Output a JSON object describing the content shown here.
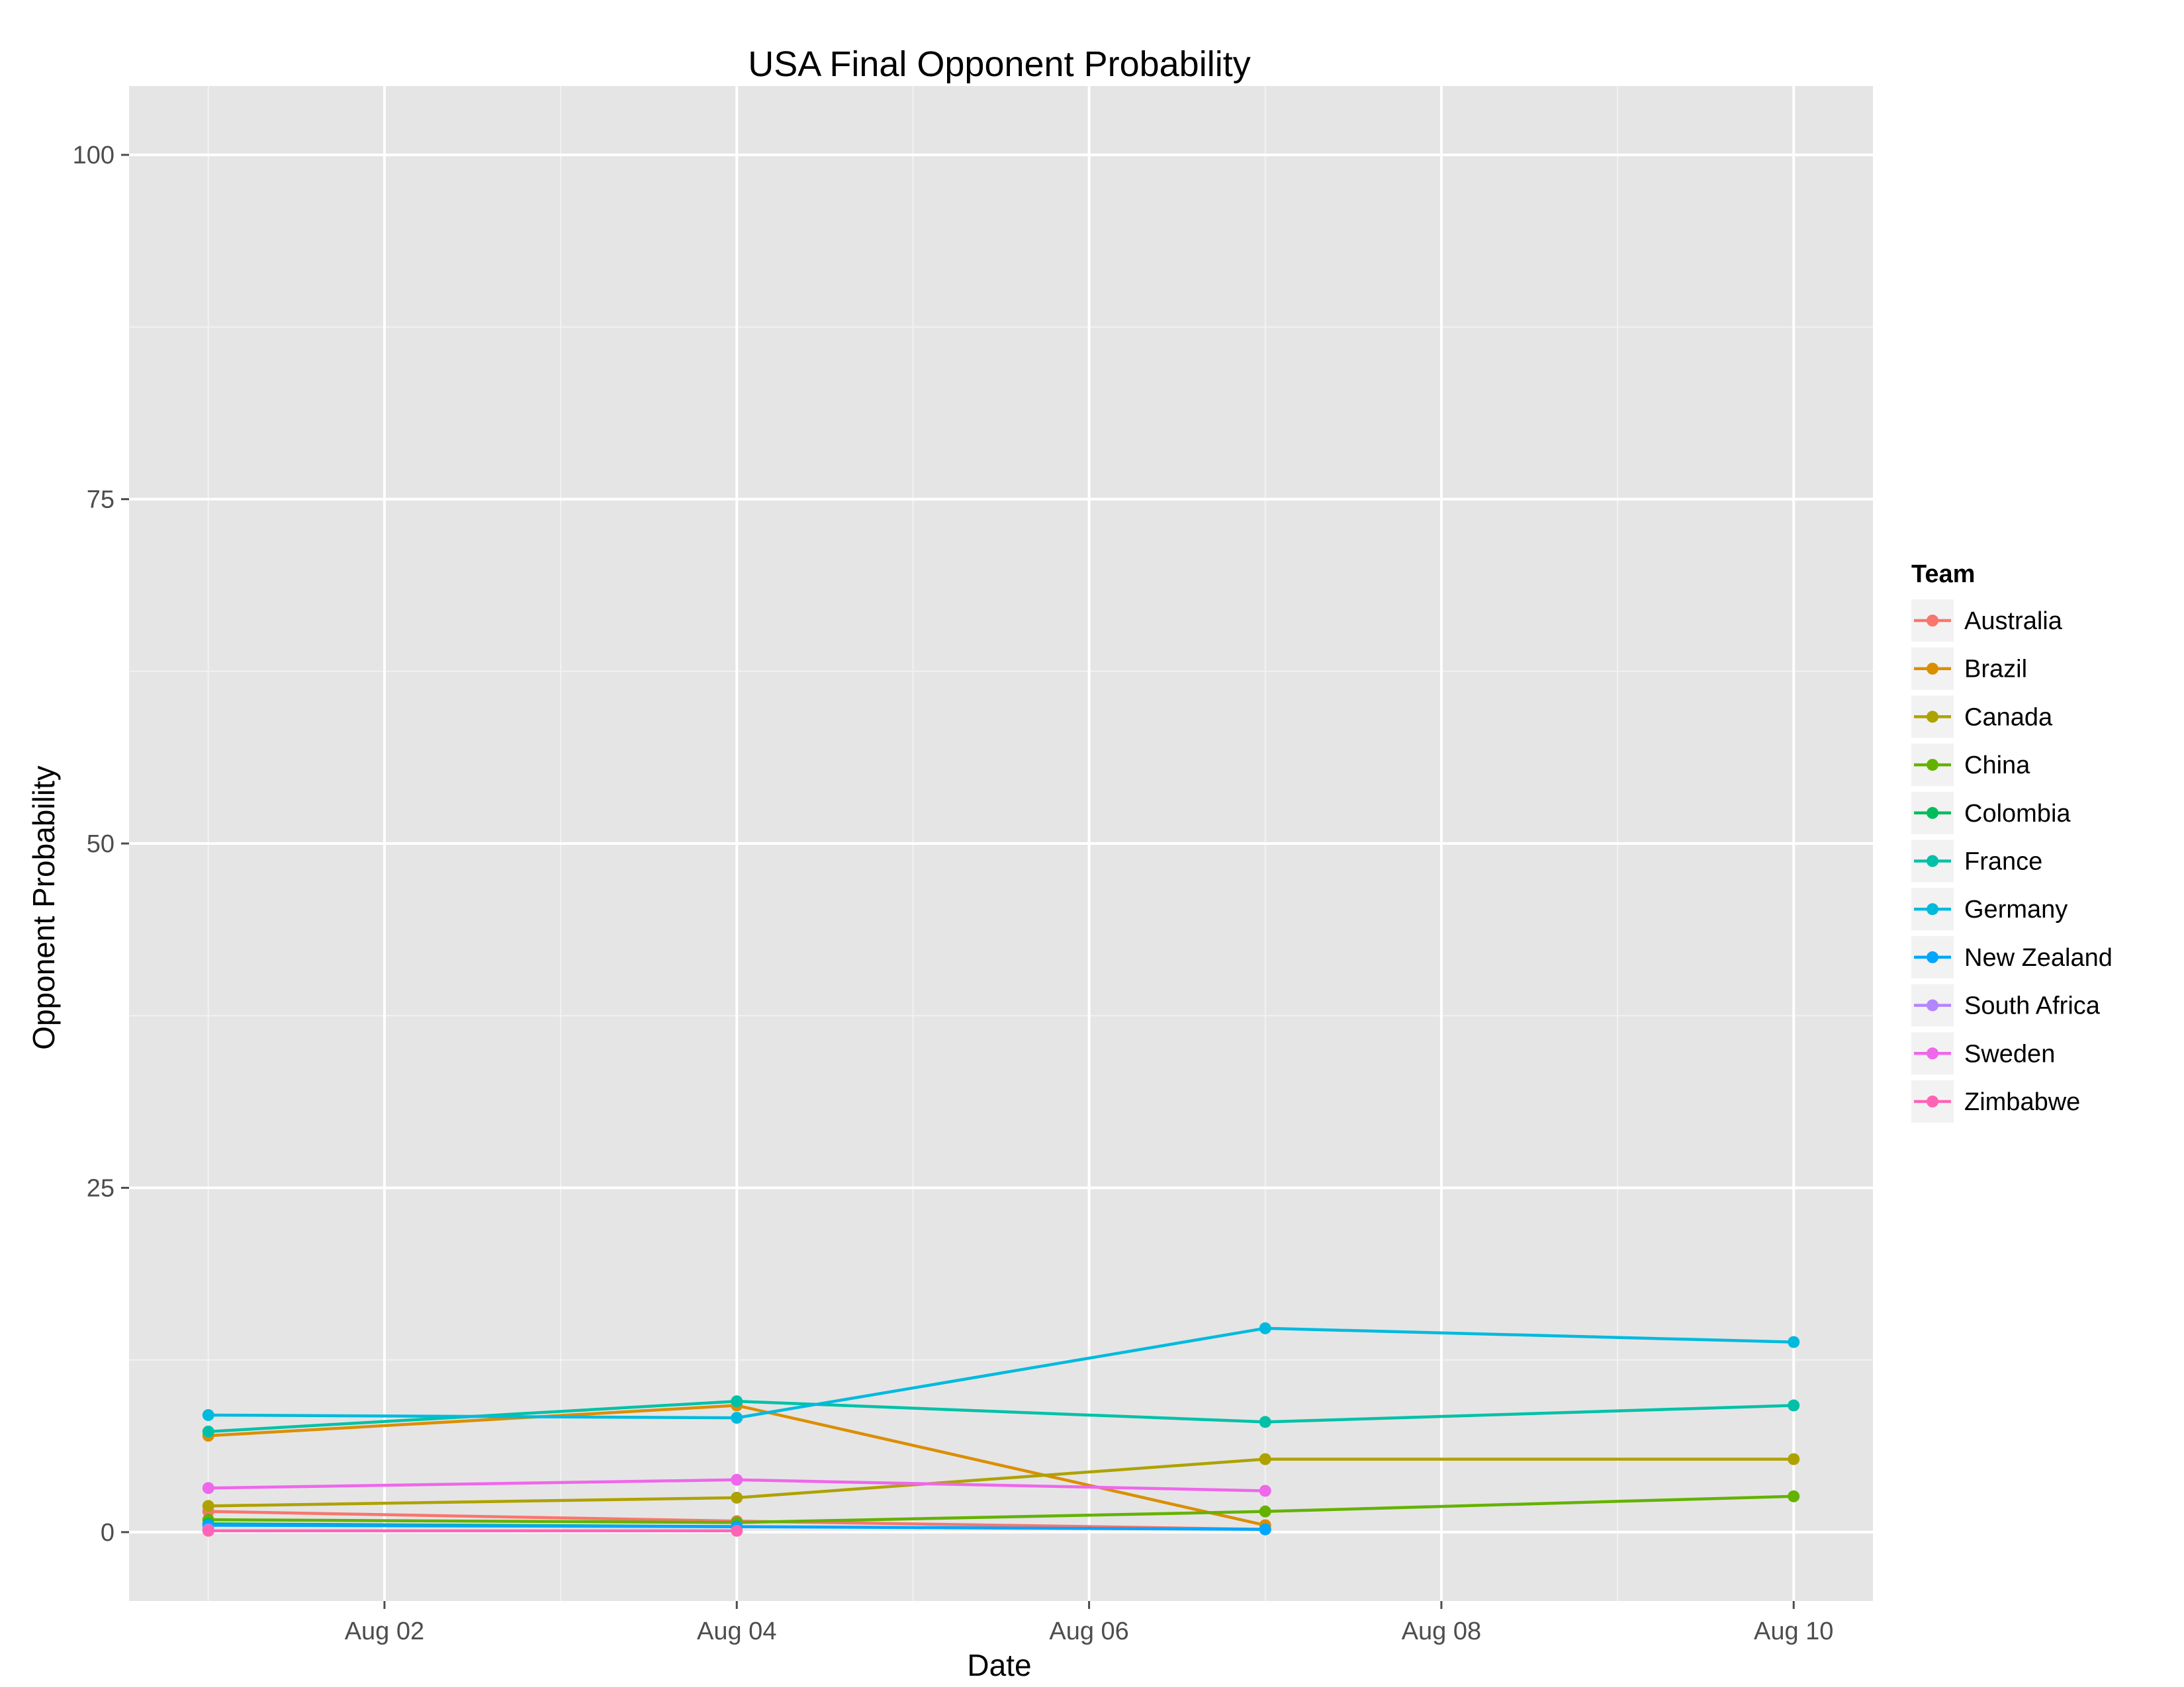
{
  "chart_data": {
    "type": "line",
    "title": "USA Final Opponent Probability",
    "xlabel": "Date",
    "ylabel": "Opponent Probability",
    "x_domain": [
      0.55,
      10.45
    ],
    "ylim": [
      -5,
      105
    ],
    "x_ticks": [
      {
        "value": 2,
        "label": "Aug 02"
      },
      {
        "value": 4,
        "label": "Aug 04"
      },
      {
        "value": 6,
        "label": "Aug 06"
      },
      {
        "value": 8,
        "label": "Aug 08"
      },
      {
        "value": 10,
        "label": "Aug 10"
      }
    ],
    "y_ticks": [
      {
        "value": 0,
        "label": "0"
      },
      {
        "value": 25,
        "label": "25"
      },
      {
        "value": 50,
        "label": "50"
      },
      {
        "value": 75,
        "label": "75"
      },
      {
        "value": 100,
        "label": "100"
      }
    ],
    "legend_title": "Team",
    "legend_position": "right",
    "grid": true,
    "series": [
      {
        "name": "Australia",
        "color": "#F8766D",
        "x": [
          1,
          4,
          7
        ],
        "values": [
          1.5,
          0.8,
          0.2
        ]
      },
      {
        "name": "Brazil",
        "color": "#DB8E00",
        "x": [
          1,
          4,
          7
        ],
        "values": [
          7.0,
          9.2,
          0.5
        ]
      },
      {
        "name": "Canada",
        "color": "#AEA200",
        "x": [
          1,
          4,
          7,
          10
        ],
        "values": [
          1.9,
          2.5,
          5.3,
          5.3
        ]
      },
      {
        "name": "China",
        "color": "#64B200",
        "x": [
          1,
          4,
          7,
          10
        ],
        "values": [
          0.9,
          0.7,
          1.5,
          2.6
        ]
      },
      {
        "name": "Colombia",
        "color": "#00BD5C",
        "x": [
          1,
          4
        ],
        "values": [
          0.6,
          0.4
        ]
      },
      {
        "name": "France",
        "color": "#00C1A7",
        "x": [
          1,
          4,
          7,
          10
        ],
        "values": [
          7.3,
          9.5,
          8.0,
          9.2
        ]
      },
      {
        "name": "Germany",
        "color": "#00BADE",
        "x": [
          1,
          4,
          7,
          10
        ],
        "values": [
          8.5,
          8.3,
          14.8,
          13.8
        ]
      },
      {
        "name": "New Zealand",
        "color": "#00A6FF",
        "x": [
          1,
          4,
          7
        ],
        "values": [
          0.5,
          0.4,
          0.2
        ]
      },
      {
        "name": "South Africa",
        "color": "#B385FF",
        "x": [
          1
        ],
        "values": [
          0.2
        ]
      },
      {
        "name": "Sweden",
        "color": "#EF67EB",
        "x": [
          1,
          4,
          7
        ],
        "values": [
          3.2,
          3.8,
          3.0
        ]
      },
      {
        "name": "Zimbabwe",
        "color": "#FF63B6",
        "x": [
          1,
          4
        ],
        "values": [
          0.1,
          0.1
        ]
      }
    ]
  }
}
